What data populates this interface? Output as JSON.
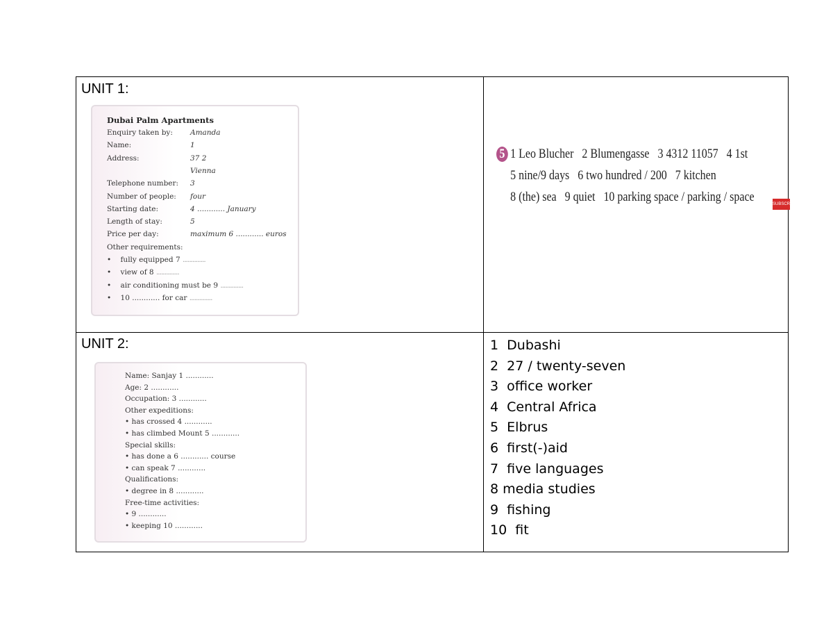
{
  "unit1": {
    "label": "UNIT 1:",
    "form": {
      "title": "Dubai Palm Apartments",
      "rows": [
        {
          "label": "Enquiry taken by:",
          "value": "Amanda"
        },
        {
          "label": "Name:",
          "value": "1"
        },
        {
          "label": "Address:",
          "value": "37 2"
        },
        {
          "label": "",
          "value": "Vienna"
        },
        {
          "label": "Telephone number:",
          "value": "3"
        },
        {
          "label": "Number of people:",
          "value": "four"
        },
        {
          "label": "Starting date:",
          "value": "4 ............ January"
        },
        {
          "label": "Length of stay:",
          "value": "5"
        },
        {
          "label": "Price per day:",
          "value": "maximum 6 ............ euros"
        },
        {
          "label": "Other requirements:",
          "value": ""
        }
      ],
      "bullets": [
        "fully equipped 7",
        "view of 8",
        "air conditioning must be 9",
        "10 ............ for car"
      ]
    },
    "answers": {
      "badge": "5",
      "lines": [
        "1 Leo Blucher   2 Blumengasse   3 4312 11057   4 1st",
        "5 nine/9 days   6 two hundred / 200   7 kitchen",
        "8 (the) sea   9 quiet   10 parking space / parking / space"
      ],
      "overlay": "SUBSCRI"
    }
  },
  "unit2": {
    "label": "UNIT 2:",
    "form": {
      "lines": [
        "Name: Sanjay 1 ............",
        "Age: 2 ............",
        "Occupation: 3 ............",
        "Other expeditions:",
        "• has crossed 4 ............",
        "• has climbed Mount 5 ............",
        "Special skills:",
        "• has done a 6 ............ course",
        "• can speak 7 ............",
        "Qualifications:",
        "• degree in 8 ............",
        "Free-time activities:",
        "• 9 ............",
        "• keeping 10 ............"
      ]
    },
    "answers": [
      "1  Dubashi",
      "2  27 / twenty-seven",
      "3  office worker",
      "4  Central Africa",
      "5  Elbrus",
      "6  first(-)aid",
      "7  five languages",
      "8 media studies",
      "9  fishing",
      "10  fit"
    ]
  }
}
